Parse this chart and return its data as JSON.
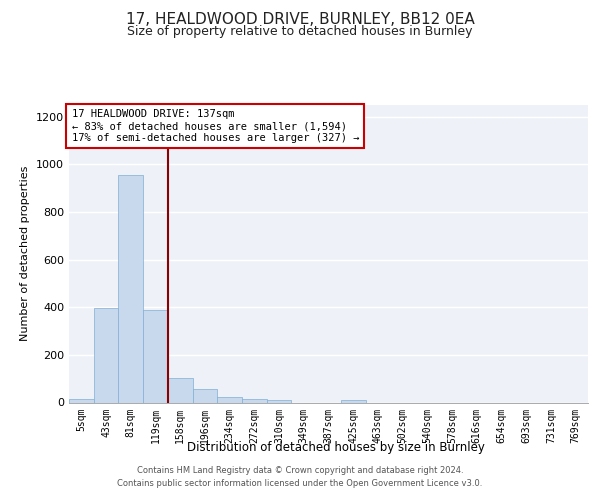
{
  "title_line1": "17, HEALDWOOD DRIVE, BURNLEY, BB12 0EA",
  "title_line2": "Size of property relative to detached houses in Burnley",
  "xlabel": "Distribution of detached houses by size in Burnley",
  "ylabel": "Number of detached properties",
  "bar_color": "#c9d9ed",
  "bar_edge_color": "#7fafd4",
  "background_color": "#eef2f8",
  "grid_color": "#ffffff",
  "vline_color": "#8b0000",
  "annotation_text": "17 HEALDWOOD DRIVE: 137sqm\n← 83% of detached houses are smaller (1,594)\n17% of semi-detached houses are larger (327) →",
  "annotation_box_color": "#ffffff",
  "annotation_edge_color": "#cc0000",
  "categories": [
    "5sqm",
    "43sqm",
    "81sqm",
    "119sqm",
    "158sqm",
    "196sqm",
    "234sqm",
    "272sqm",
    "310sqm",
    "349sqm",
    "387sqm",
    "425sqm",
    "463sqm",
    "502sqm",
    "540sqm",
    "578sqm",
    "616sqm",
    "654sqm",
    "693sqm",
    "731sqm",
    "769sqm"
  ],
  "values": [
    15,
    395,
    955,
    390,
    105,
    55,
    25,
    15,
    12,
    0,
    0,
    12,
    0,
    0,
    0,
    0,
    0,
    0,
    0,
    0,
    0
  ],
  "ylim": [
    0,
    1250
  ],
  "yticks": [
    0,
    200,
    400,
    600,
    800,
    1000,
    1200
  ],
  "footer": "Contains HM Land Registry data © Crown copyright and database right 2024.\nContains public sector information licensed under the Open Government Licence v3.0.",
  "title_fontsize": 11,
  "subtitle_fontsize": 9,
  "tick_fontsize": 7,
  "ylabel_fontsize": 8,
  "xlabel_fontsize": 8.5,
  "footer_fontsize": 6,
  "annot_fontsize": 7.5,
  "vline_bar_index": 3
}
